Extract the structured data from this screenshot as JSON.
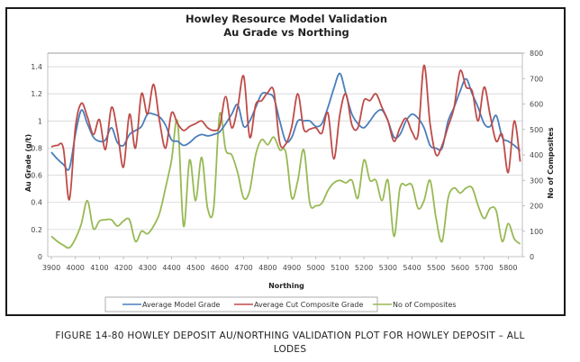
{
  "caption": {
    "line1": "FIGURE 14-80 HOWLEY DEPOSIT AU/NORTHING VALIDATION PLOT FOR HOWLEY DEPOSIT – ALL",
    "line2": "LODES"
  },
  "chart_data": {
    "type": "line",
    "title": "Howley Resource Model Validation",
    "subtitle": "Au Grade vs Northing",
    "xlabel": "Northing",
    "ylabel": "Au Grade (g/t)",
    "y2label": "No of Composites",
    "xlim": [
      3900,
      5860
    ],
    "ylim": [
      0,
      1.5
    ],
    "y2lim": [
      0,
      800
    ],
    "xticks": [
      3900,
      4000,
      4100,
      4200,
      4300,
      4400,
      4500,
      4600,
      4700,
      4800,
      4900,
      5000,
      5100,
      5200,
      5300,
      5400,
      5500,
      5600,
      5700,
      5800
    ],
    "yticks": [
      0,
      0.2,
      0.4,
      0.6,
      0.8,
      1,
      1.2,
      1.4
    ],
    "ytick_labels": [
      "0",
      "0.2",
      "0.4",
      "0.6",
      "0.8",
      "1",
      "1.2",
      "1.4"
    ],
    "y2ticks": [
      0,
      100,
      200,
      300,
      400,
      500,
      600,
      700,
      800
    ],
    "grid": true,
    "legend": "bottom",
    "series": [
      {
        "name": "Average Model Grade",
        "axis": "left",
        "color": "#4a7ebb",
        "x": [
          3900,
          3925,
          3950,
          3975,
          4000,
          4025,
          4050,
          4075,
          4100,
          4125,
          4150,
          4175,
          4200,
          4225,
          4250,
          4275,
          4300,
          4325,
          4350,
          4375,
          4400,
          4425,
          4450,
          4475,
          4500,
          4525,
          4550,
          4575,
          4600,
          4625,
          4650,
          4675,
          4700,
          4725,
          4750,
          4775,
          4800,
          4825,
          4850,
          4875,
          4900,
          4925,
          4950,
          4975,
          5000,
          5025,
          5050,
          5075,
          5100,
          5125,
          5150,
          5175,
          5200,
          5225,
          5250,
          5275,
          5300,
          5325,
          5350,
          5375,
          5400,
          5425,
          5450,
          5475,
          5500,
          5525,
          5550,
          5575,
          5600,
          5625,
          5650,
          5675,
          5700,
          5725,
          5750,
          5775,
          5800,
          5825,
          5850
        ],
        "values": [
          0.77,
          0.72,
          0.68,
          0.65,
          0.9,
          1.08,
          0.98,
          0.88,
          0.85,
          0.86,
          0.95,
          0.84,
          0.82,
          0.9,
          0.93,
          0.96,
          1.05,
          1.05,
          1.03,
          0.97,
          0.86,
          0.85,
          0.82,
          0.84,
          0.88,
          0.9,
          0.89,
          0.9,
          0.92,
          0.98,
          1.05,
          1.12,
          0.96,
          1.0,
          1.1,
          1.2,
          1.2,
          1.17,
          1.0,
          0.85,
          0.88,
          1.0,
          1.0,
          1.0,
          0.96,
          0.98,
          1.1,
          1.24,
          1.35,
          1.2,
          1.05,
          0.98,
          0.95,
          1.0,
          1.06,
          1.08,
          1.0,
          0.88,
          0.9,
          1.0,
          1.05,
          1.02,
          0.95,
          0.82,
          0.8,
          0.8,
          1.0,
          1.1,
          1.22,
          1.31,
          1.2,
          1.1,
          0.98,
          0.96,
          1.04,
          0.88,
          0.85,
          0.82,
          0.78
        ]
      },
      {
        "name": "Average Cut Composite Grade",
        "axis": "left",
        "color": "#be4b48",
        "x": [
          3900,
          3925,
          3950,
          3975,
          4000,
          4025,
          4050,
          4075,
          4100,
          4125,
          4150,
          4175,
          4200,
          4225,
          4250,
          4275,
          4300,
          4325,
          4350,
          4375,
          4400,
          4425,
          4450,
          4475,
          4500,
          4525,
          4550,
          4575,
          4600,
          4625,
          4650,
          4675,
          4700,
          4725,
          4750,
          4775,
          4800,
          4825,
          4850,
          4875,
          4900,
          4925,
          4950,
          4975,
          5000,
          5025,
          5050,
          5075,
          5100,
          5125,
          5150,
          5175,
          5200,
          5225,
          5250,
          5275,
          5300,
          5325,
          5350,
          5375,
          5400,
          5425,
          5450,
          5475,
          5500,
          5525,
          5550,
          5575,
          5600,
          5625,
          5650,
          5675,
          5700,
          5725,
          5750,
          5775,
          5800,
          5825,
          5850
        ],
        "values": [
          0.81,
          0.82,
          0.8,
          0.42,
          0.95,
          1.13,
          1.03,
          0.9,
          1.01,
          0.79,
          1.1,
          0.92,
          0.66,
          1.05,
          0.8,
          1.2,
          1.05,
          1.27,
          1.0,
          0.8,
          1.06,
          0.98,
          0.93,
          0.96,
          0.98,
          1.0,
          0.95,
          0.93,
          0.96,
          1.18,
          0.95,
          1.1,
          1.33,
          0.88,
          1.12,
          1.15,
          1.21,
          1.22,
          0.84,
          0.83,
          0.96,
          1.2,
          0.94,
          0.94,
          0.95,
          0.91,
          1.06,
          0.72,
          1.05,
          1.2,
          0.97,
          0.95,
          1.15,
          1.15,
          1.2,
          1.1,
          1.0,
          0.85,
          0.95,
          1.02,
          0.92,
          0.9,
          1.41,
          0.98,
          0.75,
          0.82,
          0.96,
          1.1,
          1.37,
          1.25,
          1.22,
          1.0,
          1.25,
          1.04,
          0.85,
          0.9,
          0.62,
          1.0,
          0.7
        ]
      },
      {
        "name": "No of Composites",
        "axis": "right",
        "color": "#98b954",
        "x": [
          3900,
          3925,
          3950,
          3975,
          4000,
          4025,
          4050,
          4075,
          4100,
          4125,
          4150,
          4175,
          4200,
          4225,
          4250,
          4275,
          4300,
          4325,
          4350,
          4375,
          4400,
          4425,
          4450,
          4475,
          4500,
          4525,
          4550,
          4575,
          4600,
          4625,
          4650,
          4675,
          4700,
          4725,
          4750,
          4775,
          4800,
          4825,
          4850,
          4875,
          4900,
          4925,
          4950,
          4975,
          5000,
          5025,
          5050,
          5075,
          5100,
          5125,
          5150,
          5175,
          5200,
          5225,
          5250,
          5275,
          5300,
          5325,
          5350,
          5375,
          5400,
          5425,
          5450,
          5475,
          5500,
          5525,
          5550,
          5575,
          5600,
          5625,
          5650,
          5675,
          5700,
          5725,
          5750,
          5775,
          5800,
          5825,
          5850
        ],
        "values": [
          80,
          60,
          45,
          35,
          70,
          130,
          220,
          110,
          140,
          145,
          145,
          120,
          140,
          145,
          60,
          100,
          90,
          120,
          170,
          270,
          380,
          530,
          120,
          380,
          220,
          390,
          190,
          190,
          560,
          420,
          400,
          330,
          230,
          260,
          400,
          460,
          440,
          470,
          420,
          410,
          230,
          300,
          420,
          210,
          200,
          210,
          260,
          290,
          300,
          290,
          300,
          230,
          380,
          300,
          300,
          220,
          300,
          80,
          270,
          280,
          280,
          190,
          220,
          300,
          150,
          60,
          230,
          270,
          250,
          270,
          270,
          200,
          150,
          190,
          180,
          60,
          130,
          70,
          50
        ]
      }
    ]
  }
}
